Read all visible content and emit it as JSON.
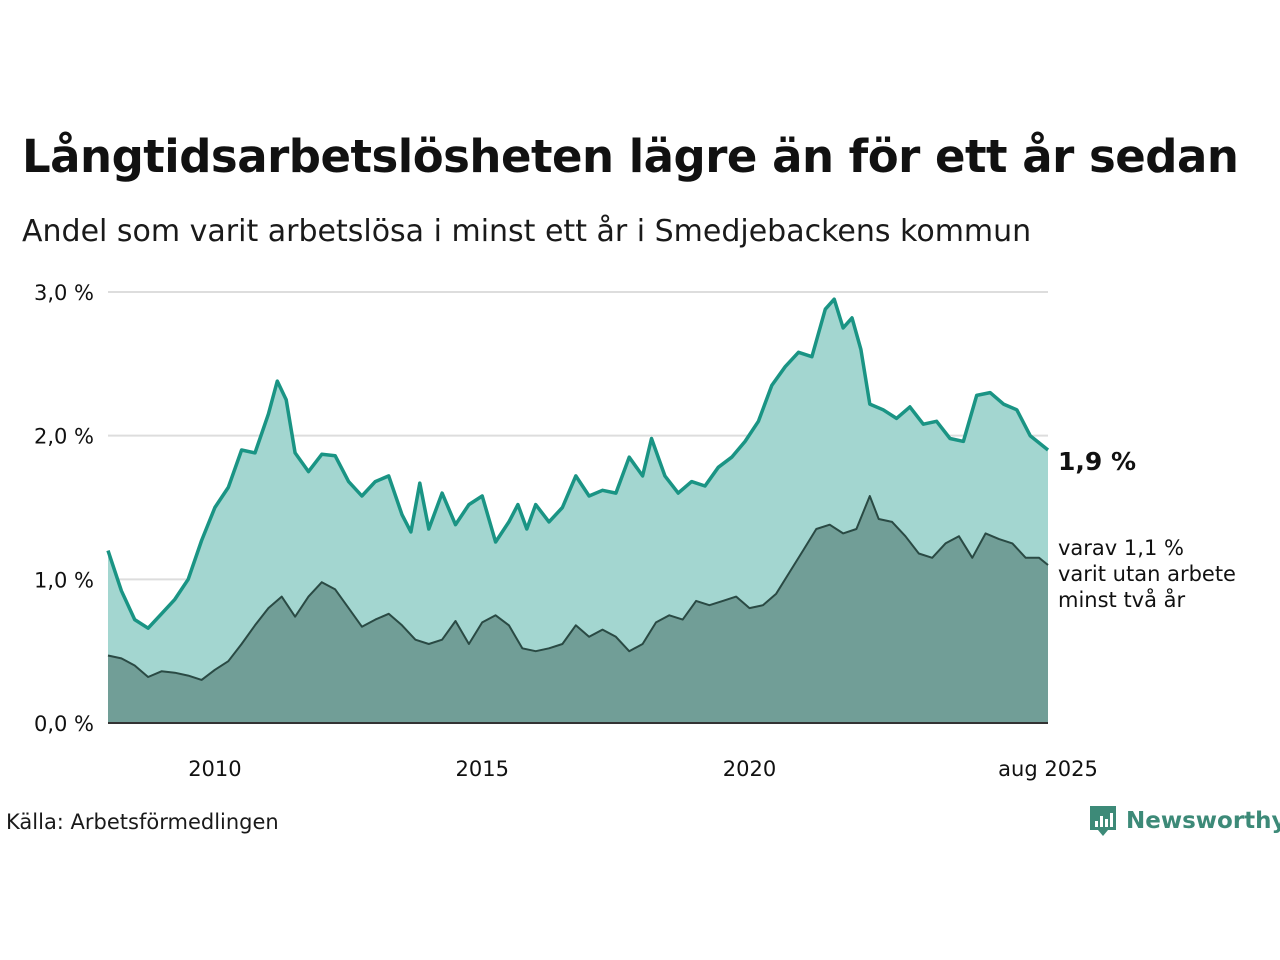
{
  "title": "Långtidsarbetslösheten lägre än för ett år sedan",
  "subtitle": "Andel som varit arbetslösa i minst ett år i Smedjebackens kommun",
  "source": "Källa: Arbetsförmedlingen",
  "logo": {
    "text": "Newsworthy",
    "icon": "newsworthy-chart-icon",
    "color": "#3d8a78"
  },
  "colors": {
    "total_line": "#1a9484",
    "total_area": "#a3d6d0",
    "long_line": "#2a4a44",
    "long_area": "#719e97",
    "grid": "#dddddd",
    "text": "#111111"
  },
  "chart_data": {
    "type": "area",
    "x_start": "2008-01",
    "x_end": "2025-08",
    "x_ticks": [
      {
        "date": "2010-01",
        "label": "2010"
      },
      {
        "date": "2015-01",
        "label": "2015"
      },
      {
        "date": "2020-01",
        "label": "2020"
      },
      {
        "date": "2025-08",
        "label": "aug 2025"
      }
    ],
    "y_ticks": [
      {
        "value": 0.0,
        "label": "0,0 %"
      },
      {
        "value": 1.0,
        "label": "1,0 %"
      },
      {
        "value": 2.0,
        "label": "2,0 %"
      },
      {
        "value": 3.0,
        "label": "3,0 %"
      }
    ],
    "ylim": [
      0,
      3.0
    ],
    "grid": "horizontal",
    "series": [
      {
        "key": "total",
        "unit": "%",
        "points": [
          [
            "2008-01",
            1.2
          ],
          [
            "2008-04",
            0.92
          ],
          [
            "2008-07",
            0.72
          ],
          [
            "2008-10",
            0.66
          ],
          [
            "2009-01",
            0.76
          ],
          [
            "2009-04",
            0.86
          ],
          [
            "2009-07",
            1.0
          ],
          [
            "2009-10",
            1.27
          ],
          [
            "2010-01",
            1.5
          ],
          [
            "2010-04",
            1.64
          ],
          [
            "2010-07",
            1.9
          ],
          [
            "2010-10",
            1.88
          ],
          [
            "2011-01",
            2.15
          ],
          [
            "2011-03",
            2.38
          ],
          [
            "2011-05",
            2.25
          ],
          [
            "2011-07",
            1.88
          ],
          [
            "2011-10",
            1.75
          ],
          [
            "2012-01",
            1.87
          ],
          [
            "2012-04",
            1.86
          ],
          [
            "2012-07",
            1.68
          ],
          [
            "2012-10",
            1.58
          ],
          [
            "2013-01",
            1.68
          ],
          [
            "2013-04",
            1.72
          ],
          [
            "2013-07",
            1.45
          ],
          [
            "2013-09",
            1.33
          ],
          [
            "2013-11",
            1.67
          ],
          [
            "2014-01",
            1.35
          ],
          [
            "2014-04",
            1.6
          ],
          [
            "2014-07",
            1.38
          ],
          [
            "2014-10",
            1.52
          ],
          [
            "2015-01",
            1.58
          ],
          [
            "2015-04",
            1.26
          ],
          [
            "2015-07",
            1.4
          ],
          [
            "2015-09",
            1.52
          ],
          [
            "2015-11",
            1.35
          ],
          [
            "2016-01",
            1.52
          ],
          [
            "2016-04",
            1.4
          ],
          [
            "2016-07",
            1.5
          ],
          [
            "2016-10",
            1.72
          ],
          [
            "2017-01",
            1.58
          ],
          [
            "2017-04",
            1.62
          ],
          [
            "2017-07",
            1.6
          ],
          [
            "2017-10",
            1.85
          ],
          [
            "2018-01",
            1.72
          ],
          [
            "2018-03",
            1.98
          ],
          [
            "2018-06",
            1.72
          ],
          [
            "2018-09",
            1.6
          ],
          [
            "2018-12",
            1.68
          ],
          [
            "2019-03",
            1.65
          ],
          [
            "2019-06",
            1.78
          ],
          [
            "2019-09",
            1.85
          ],
          [
            "2019-12",
            1.96
          ],
          [
            "2020-03",
            2.1
          ],
          [
            "2020-06",
            2.35
          ],
          [
            "2020-09",
            2.48
          ],
          [
            "2020-12",
            2.58
          ],
          [
            "2021-03",
            2.55
          ],
          [
            "2021-06",
            2.88
          ],
          [
            "2021-08",
            2.95
          ],
          [
            "2021-10",
            2.75
          ],
          [
            "2021-12",
            2.82
          ],
          [
            "2022-02",
            2.6
          ],
          [
            "2022-04",
            2.22
          ],
          [
            "2022-07",
            2.18
          ],
          [
            "2022-10",
            2.12
          ],
          [
            "2023-01",
            2.2
          ],
          [
            "2023-04",
            2.08
          ],
          [
            "2023-07",
            2.1
          ],
          [
            "2023-10",
            1.98
          ],
          [
            "2024-01",
            1.96
          ],
          [
            "2024-04",
            2.28
          ],
          [
            "2024-07",
            2.3
          ],
          [
            "2024-10",
            2.22
          ],
          [
            "2025-01",
            2.18
          ],
          [
            "2025-04",
            2.0
          ],
          [
            "2025-08",
            1.9
          ]
        ]
      },
      {
        "key": "long",
        "unit": "%",
        "points": [
          [
            "2008-01",
            0.47
          ],
          [
            "2008-04",
            0.45
          ],
          [
            "2008-07",
            0.4
          ],
          [
            "2008-10",
            0.32
          ],
          [
            "2009-01",
            0.36
          ],
          [
            "2009-04",
            0.35
          ],
          [
            "2009-07",
            0.33
          ],
          [
            "2009-10",
            0.3
          ],
          [
            "2010-01",
            0.37
          ],
          [
            "2010-04",
            0.43
          ],
          [
            "2010-07",
            0.55
          ],
          [
            "2010-10",
            0.68
          ],
          [
            "2011-01",
            0.8
          ],
          [
            "2011-04",
            0.88
          ],
          [
            "2011-07",
            0.74
          ],
          [
            "2011-10",
            0.88
          ],
          [
            "2012-01",
            0.98
          ],
          [
            "2012-04",
            0.93
          ],
          [
            "2012-07",
            0.8
          ],
          [
            "2012-10",
            0.67
          ],
          [
            "2013-01",
            0.72
          ],
          [
            "2013-04",
            0.76
          ],
          [
            "2013-07",
            0.68
          ],
          [
            "2013-10",
            0.58
          ],
          [
            "2014-01",
            0.55
          ],
          [
            "2014-04",
            0.58
          ],
          [
            "2014-07",
            0.71
          ],
          [
            "2014-10",
            0.55
          ],
          [
            "2015-01",
            0.7
          ],
          [
            "2015-04",
            0.75
          ],
          [
            "2015-07",
            0.68
          ],
          [
            "2015-10",
            0.52
          ],
          [
            "2016-01",
            0.5
          ],
          [
            "2016-04",
            0.52
          ],
          [
            "2016-07",
            0.55
          ],
          [
            "2016-10",
            0.68
          ],
          [
            "2017-01",
            0.6
          ],
          [
            "2017-04",
            0.65
          ],
          [
            "2017-07",
            0.6
          ],
          [
            "2017-10",
            0.5
          ],
          [
            "2018-01",
            0.55
          ],
          [
            "2018-04",
            0.7
          ],
          [
            "2018-07",
            0.75
          ],
          [
            "2018-10",
            0.72
          ],
          [
            "2019-01",
            0.85
          ],
          [
            "2019-04",
            0.82
          ],
          [
            "2019-07",
            0.85
          ],
          [
            "2019-10",
            0.88
          ],
          [
            "2020-01",
            0.8
          ],
          [
            "2020-04",
            0.82
          ],
          [
            "2020-07",
            0.9
          ],
          [
            "2020-10",
            1.05
          ],
          [
            "2021-01",
            1.2
          ],
          [
            "2021-04",
            1.35
          ],
          [
            "2021-07",
            1.38
          ],
          [
            "2021-10",
            1.32
          ],
          [
            "2022-01",
            1.35
          ],
          [
            "2022-04",
            1.58
          ],
          [
            "2022-06",
            1.42
          ],
          [
            "2022-09",
            1.4
          ],
          [
            "2022-12",
            1.3
          ],
          [
            "2023-03",
            1.18
          ],
          [
            "2023-06",
            1.15
          ],
          [
            "2023-09",
            1.25
          ],
          [
            "2023-12",
            1.3
          ],
          [
            "2024-03",
            1.15
          ],
          [
            "2024-06",
            1.32
          ],
          [
            "2024-09",
            1.28
          ],
          [
            "2024-12",
            1.25
          ],
          [
            "2025-03",
            1.15
          ],
          [
            "2025-06",
            1.15
          ],
          [
            "2025-08",
            1.1
          ]
        ]
      }
    ],
    "labels": {
      "total": "1,9 %",
      "long": [
        "varav 1,1 %",
        "varit utan arbete",
        "minst två år"
      ]
    }
  }
}
